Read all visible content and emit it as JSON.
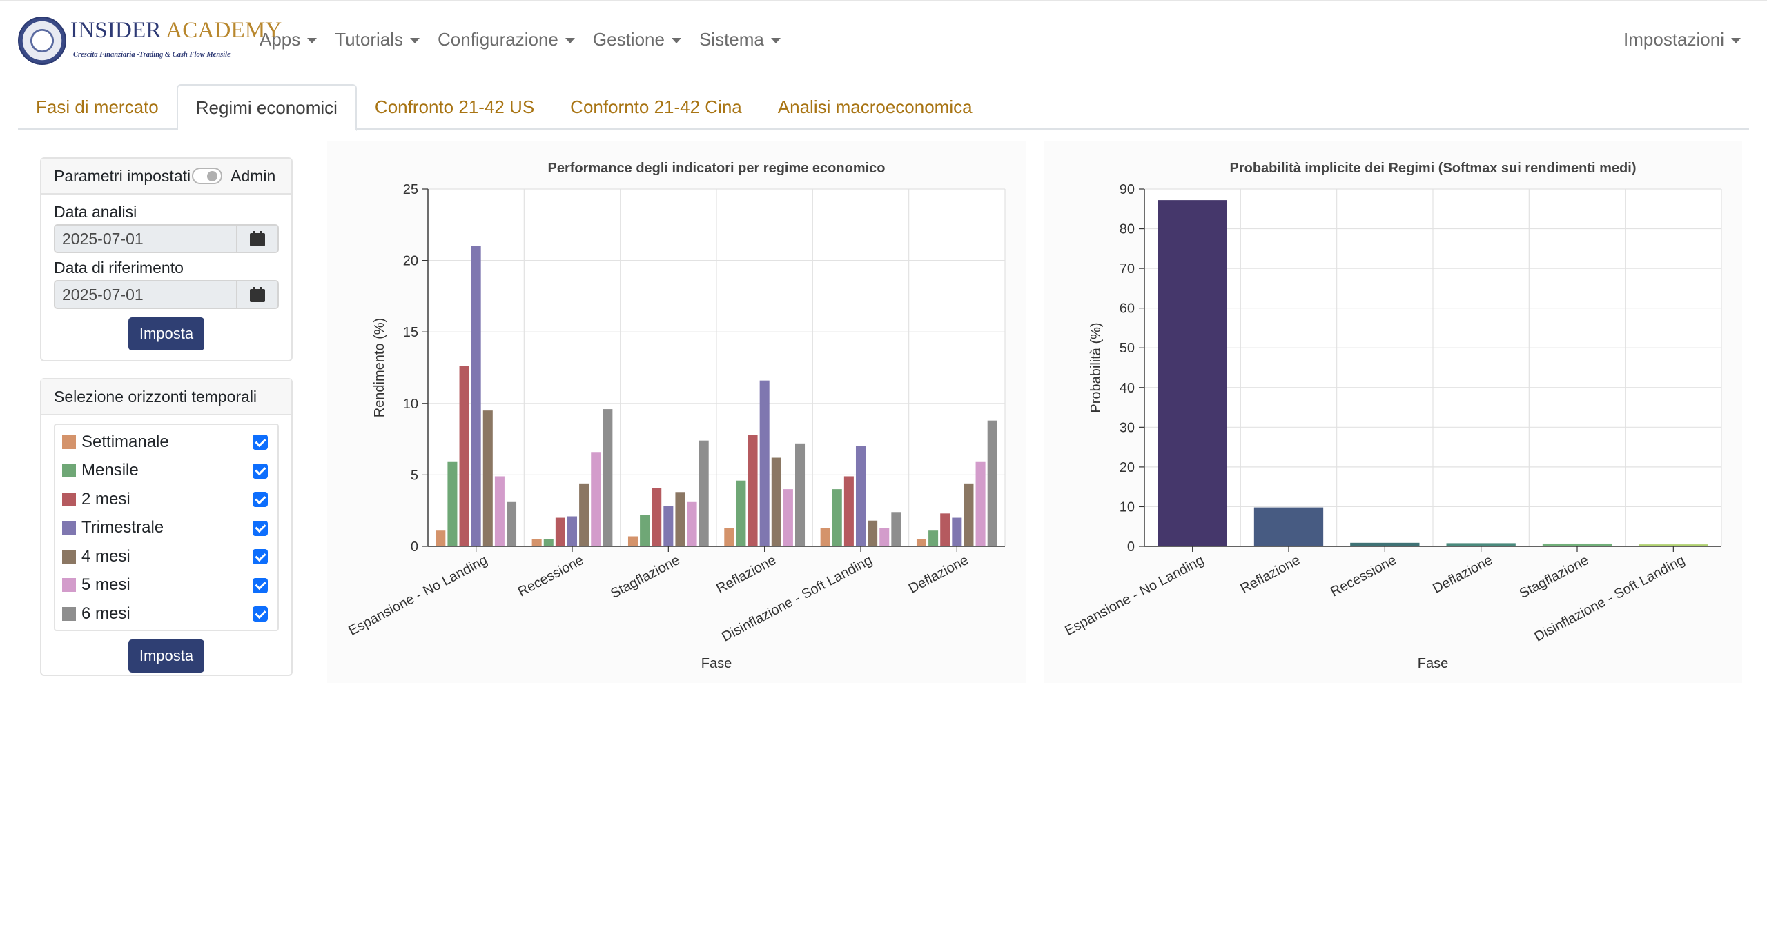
{
  "brand": {
    "name_part1": "INSIDER",
    "name_part2": "ACADEMY",
    "tagline": "Crescita Finanziaria -Trading & Cash Flow Mensile"
  },
  "nav": {
    "items": [
      "Apps",
      "Tutorials",
      "Configurazione",
      "Gestione",
      "Sistema"
    ],
    "right": "Impostazioni"
  },
  "tabs": [
    {
      "label": "Fasi di mercato",
      "active": false
    },
    {
      "label": "Regimi economici",
      "active": true
    },
    {
      "label": "Confronto 21-42 US",
      "active": false
    },
    {
      "label": "Confornto 21-42 Cina",
      "active": false
    },
    {
      "label": "Analisi macroeconomica",
      "active": false
    }
  ],
  "params_card": {
    "header": "Parametri impostati",
    "toggle_label": "Admin",
    "analysis_date_label": "Data analisi",
    "analysis_date_value": "2025-07-01",
    "reference_date_label": "Data di riferimento",
    "reference_date_value": "2025-07-01",
    "submit_label": "Imposta"
  },
  "horizons_card": {
    "header": "Selezione orizzonti temporali",
    "items": [
      {
        "label": "Settimanale",
        "color": "#d4936b",
        "checked": true
      },
      {
        "label": "Mensile",
        "color": "#6fa776",
        "checked": true
      },
      {
        "label": "2 mesi",
        "color": "#b55a5f",
        "checked": true
      },
      {
        "label": "Trimestrale",
        "color": "#7f77b0",
        "checked": true
      },
      {
        "label": "4 mesi",
        "color": "#8b7763",
        "checked": true
      },
      {
        "label": "5 mesi",
        "color": "#d39ccb",
        "checked": true
      },
      {
        "label": "6 mesi",
        "color": "#8e8e8e",
        "checked": true
      }
    ],
    "submit_label": "Imposta"
  },
  "chart_data": [
    {
      "type": "bar",
      "title": "Performance degli indicatori per regime economico",
      "xlabel": "Fase",
      "ylabel": "Rendimento (%)",
      "ylim": [
        0,
        25
      ],
      "yticks": [
        0,
        5,
        10,
        15,
        20,
        25
      ],
      "grid": true,
      "categories": [
        "Espansione - No Landing",
        "Recessione",
        "Stagflazione",
        "Reflazione",
        "Disinflazione - Soft Landing",
        "Deflazione"
      ],
      "series": [
        {
          "name": "Settimanale",
          "color": "#d4936b",
          "values": [
            1.1,
            0.5,
            0.7,
            1.3,
            1.3,
            0.5
          ]
        },
        {
          "name": "Mensile",
          "color": "#6fa776",
          "values": [
            5.9,
            0.5,
            2.2,
            4.6,
            4.0,
            1.1
          ]
        },
        {
          "name": "2 mesi",
          "color": "#b55a5f",
          "values": [
            12.6,
            2.0,
            4.1,
            7.8,
            4.9,
            2.3
          ]
        },
        {
          "name": "Trimestrale",
          "color": "#7f77b0",
          "values": [
            21.0,
            2.1,
            2.8,
            11.6,
            7.0,
            2.0
          ]
        },
        {
          "name": "4 mesi",
          "color": "#8b7763",
          "values": [
            9.5,
            4.4,
            3.8,
            6.2,
            1.8,
            4.4
          ]
        },
        {
          "name": "5 mesi",
          "color": "#d39ccb",
          "values": [
            4.9,
            6.6,
            3.1,
            4.0,
            1.3,
            5.9
          ]
        },
        {
          "name": "6 mesi",
          "color": "#8e8e8e",
          "values": [
            3.1,
            9.6,
            7.4,
            7.2,
            2.4,
            8.8
          ]
        }
      ]
    },
    {
      "type": "bar",
      "title": "Probabilità implicite dei Regimi (Softmax sui rendimenti medi)",
      "xlabel": "Fase",
      "ylabel": "Probabilità (%)",
      "ylim": [
        0,
        90
      ],
      "yticks": [
        0,
        10,
        20,
        30,
        40,
        50,
        60,
        70,
        80,
        90
      ],
      "grid": true,
      "categories": [
        "Espansione - No Landing",
        "Reflazione",
        "Recessione",
        "Deflazione",
        "Stagflazione",
        "Disinflazione - Soft Landing"
      ],
      "values": [
        87.2,
        9.8,
        0.9,
        0.8,
        0.7,
        0.5
      ],
      "colors": [
        "#45376b",
        "#475b82",
        "#3f7275",
        "#4a8a7d",
        "#72b07a",
        "#b0d170"
      ]
    }
  ]
}
